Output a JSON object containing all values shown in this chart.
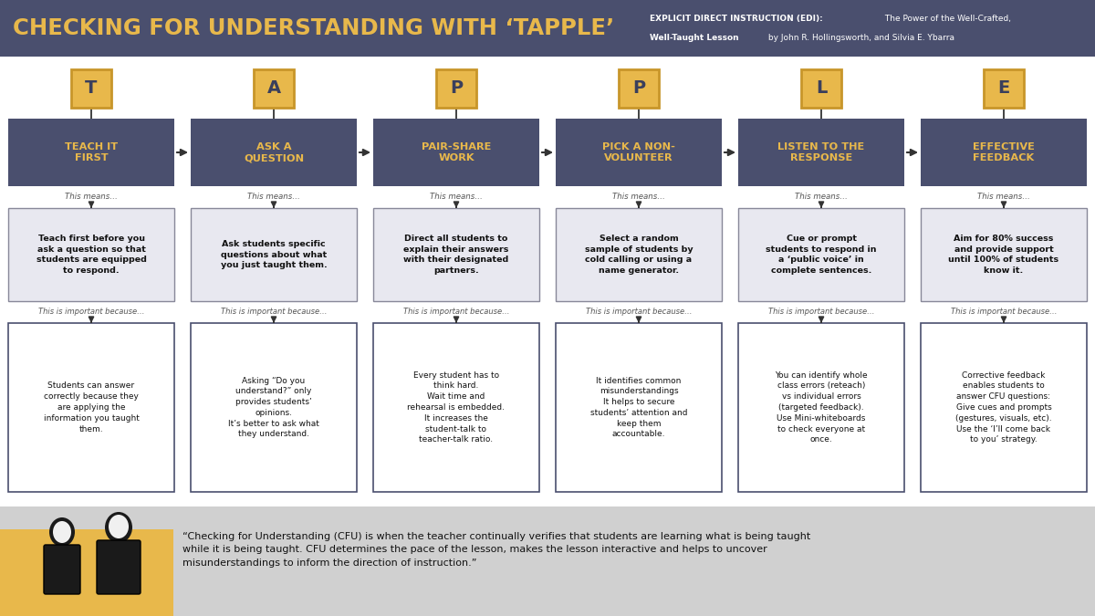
{
  "title": "CHECKING FOR UNDERSTANDING WITH ‘TAPPLE’",
  "title_color": "#E8B84B",
  "header_bg": "#4A4F6E",
  "bg_color": "#FFFFFF",
  "letters": [
    "T",
    "A",
    "P",
    "P",
    "L",
    "E"
  ],
  "letter_bg": "#E8B84B",
  "letter_border": "#C8962A",
  "letter_text_color": "#3A3F5C",
  "step_titles": [
    "TEACH IT\nFIRST",
    "ASK A\nQUESTION",
    "PAIR-SHARE\nWORK",
    "PICK A NON-\nVOLUNTEER",
    "LISTEN TO THE\nRESPONSE",
    "EFFECTIVE\nFEEDBACK"
  ],
  "step_bg": "#4A4F6E",
  "step_text_color": "#E8B84B",
  "means_texts": [
    "Teach first before you\nask a question so that\nstudents are equipped\nto respond.",
    "Ask students specific\nquestions about what\nyou just taught them.",
    "Direct all students to\nexplain their answers\nwith their designated\npartners.",
    "Select a random\nsample of students by\ncold calling or using a\nname generator.",
    "Cue or prompt\nstudents to respond in\na ‘public voice’ in\ncomplete sentences.",
    "Aim for 80% success\nand provide support\nuntil 100% of students\nknow it."
  ],
  "because_texts": [
    "Students can answer\ncorrectly because they\nare applying the\ninformation you taught\nthem.",
    "Asking “Do you\nunderstand?” only\nprovides students’\nopinions.\nIt’s better to ask what\nthey understand.",
    "Every student has to\nthink hard.\nWait time and\nrehearsal is embedded.\nIt increases the\nstudent-talk to\nteacher-talk ratio.",
    "It identifies common\nmisunderstandings\nIt helps to secure\nstudents’ attention and\nkeep them\naccountable.",
    "You can identify whole\nclass errors (reteach)\nvs individual errors\n(targeted feedback).\nUse Mini-whiteboards\nto check everyone at\nonce.",
    "Corrective feedback\nenables students to\nanswer CFU questions:\nGive cues and prompts\n(gestures, visuals, etc).\nUse the ‘I’ll come back\nto you’ strategy."
  ],
  "footer_quote": "“Checking for Understanding (CFU) is when the teacher continually verifies that students are learning what is being taught\nwhile it is being taught. CFU determines the pace of the lesson, makes the lesson interactive and helps to uncover\nmisunderstandings to inform the direction of instruction.”",
  "means_box_bg": "#E8E8F0",
  "means_box_border": "#888899",
  "because_box_bg": "#FFFFFF",
  "because_box_border": "#4A4F6E",
  "footer_bg": "#D0D0D0",
  "footer_yellow": "#E8B84B",
  "label_color": "#555555",
  "arrow_color": "#333333"
}
